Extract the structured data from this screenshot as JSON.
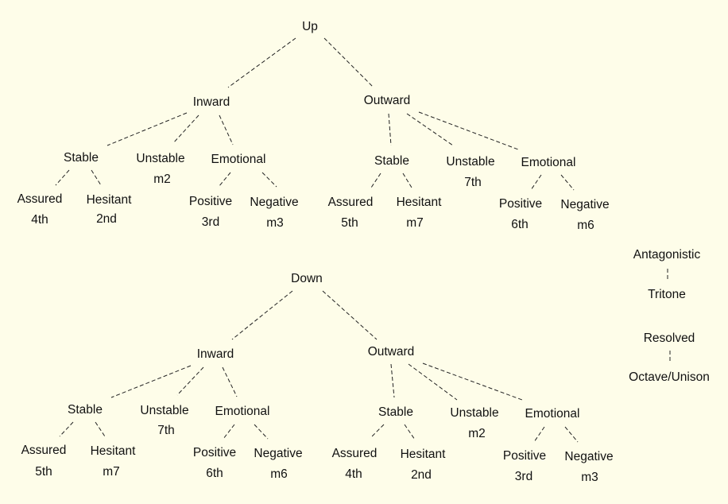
{
  "up_tree": {
    "root": "Up",
    "inward": {
      "label": "Inward",
      "stable": {
        "label": "Stable",
        "assured": {
          "label": "Assured",
          "interval": "4th"
        },
        "hesitant": {
          "label": "Hesitant",
          "interval": "2nd"
        }
      },
      "unstable": {
        "label": "Unstable",
        "interval": "m2"
      },
      "emotional": {
        "label": "Emotional",
        "positive": {
          "label": "Positive",
          "interval": "3rd"
        },
        "negative": {
          "label": "Negative",
          "interval": "m3"
        }
      }
    },
    "outward": {
      "label": "Outward",
      "stable": {
        "label": "Stable",
        "assured": {
          "label": "Assured",
          "interval": "5th"
        },
        "hesitant": {
          "label": "Hesitant",
          "interval": "m7"
        }
      },
      "unstable": {
        "label": "Unstable",
        "interval": "7th"
      },
      "emotional": {
        "label": "Emotional",
        "positive": {
          "label": "Positive",
          "interval": "6th"
        },
        "negative": {
          "label": "Negative",
          "interval": "m6"
        }
      }
    }
  },
  "down_tree": {
    "root": "Down",
    "inward": {
      "label": "Inward",
      "stable": {
        "label": "Stable",
        "assured": {
          "label": "Assured",
          "interval": "5th"
        },
        "hesitant": {
          "label": "Hesitant",
          "interval": "m7"
        }
      },
      "unstable": {
        "label": "Unstable",
        "interval": "7th"
      },
      "emotional": {
        "label": "Emotional",
        "positive": {
          "label": "Positive",
          "interval": "6th"
        },
        "negative": {
          "label": "Negative",
          "interval": "m6"
        }
      }
    },
    "outward": {
      "label": "Outward",
      "stable": {
        "label": "Stable",
        "assured": {
          "label": "Assured",
          "interval": "4th"
        },
        "hesitant": {
          "label": "Hesitant",
          "interval": "2nd"
        }
      },
      "unstable": {
        "label": "Unstable",
        "interval": "m2"
      },
      "emotional": {
        "label": "Emotional",
        "positive": {
          "label": "Positive",
          "interval": "3rd"
        },
        "negative": {
          "label": "Negative",
          "interval": "m3"
        }
      }
    }
  },
  "side": {
    "antagonistic": {
      "label": "Antagonistic",
      "interval": "Tritone"
    },
    "resolved": {
      "label": "Resolved",
      "interval": "Octave/Unison"
    }
  }
}
